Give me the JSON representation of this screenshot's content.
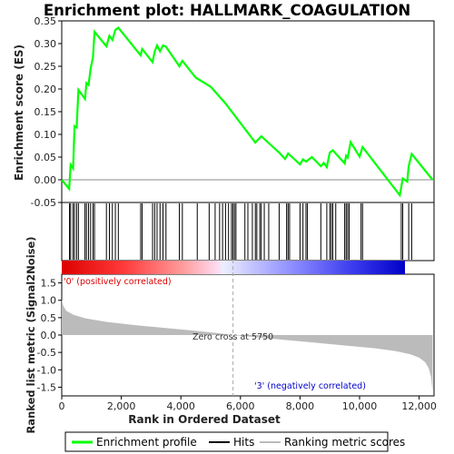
{
  "chart_data": {
    "type": "line",
    "title": "Enrichment plot: HALLMARK_COAGULATION",
    "xlabel": "Rank in Ordered Dataset",
    "ylabel_top": "Enrichment score (ES)",
    "ylabel_bottom": "Ranked list metric (Signal2Noise)",
    "xlim": [
      0,
      12500
    ],
    "x_ticks": [
      0,
      2000,
      4000,
      6000,
      8000,
      10000,
      12000
    ],
    "x_tick_labels": [
      "0",
      "2,000",
      "4,000",
      "6,000",
      "8,000",
      "10,000",
      "12,000"
    ],
    "es_ylim": [
      -0.05,
      0.35
    ],
    "es_ticks": [
      -0.05,
      0.0,
      0.05,
      0.1,
      0.15,
      0.2,
      0.25,
      0.3,
      0.35
    ],
    "es_tick_labels": [
      "-0.05",
      "0.00",
      "0.05",
      "0.10",
      "0.15",
      "0.20",
      "0.25",
      "0.30",
      "0.35"
    ],
    "metric_ylim": [
      -1.75,
      1.75
    ],
    "metric_ticks": [
      -1.5,
      -1.0,
      -0.5,
      0.0,
      0.5,
      1.0,
      1.5
    ],
    "metric_tick_labels": [
      "-1.5",
      "-1.0",
      "-0.5",
      "0.0",
      "0.5",
      "1.0",
      "1.5"
    ],
    "series": [
      {
        "name": "Enrichment profile",
        "color": "#00ff00",
        "x": [
          0,
          250,
          300,
          380,
          430,
          500,
          560,
          780,
          830,
          900,
          970,
          1050,
          1100,
          1500,
          1600,
          1700,
          1800,
          1900,
          2650,
          2700,
          3050,
          3120,
          3200,
          3300,
          3400,
          3500,
          3950,
          4050,
          4500,
          5000,
          5500,
          6000,
          6500,
          6700,
          6800,
          7300,
          7500,
          7600,
          8000,
          8100,
          8200,
          8400,
          8700,
          8800,
          8900,
          9000,
          9100,
          9500,
          9550,
          9600,
          9700,
          10000,
          10100,
          11350,
          11450,
          11600,
          11650,
          11750,
          12450
        ],
        "y": [
          0.0,
          -0.02,
          0.033,
          0.025,
          0.118,
          0.115,
          0.198,
          0.178,
          0.213,
          0.209,
          0.245,
          0.27,
          0.326,
          0.294,
          0.317,
          0.308,
          0.33,
          0.335,
          0.274,
          0.288,
          0.259,
          0.282,
          0.296,
          0.283,
          0.296,
          0.293,
          0.25,
          0.262,
          0.225,
          0.205,
          0.168,
          0.125,
          0.082,
          0.096,
          0.09,
          0.06,
          0.046,
          0.058,
          0.034,
          0.045,
          0.04,
          0.05,
          0.03,
          0.037,
          0.028,
          0.06,
          0.065,
          0.036,
          0.053,
          0.049,
          0.083,
          0.051,
          0.072,
          -0.034,
          0.003,
          -0.004,
          0.03,
          0.057,
          0.0
        ]
      },
      {
        "name": "Hits",
        "color": "#000000",
        "positions": [
          260,
          300,
          380,
          430,
          500,
          560,
          780,
          830,
          900,
          970,
          1050,
          1100,
          1500,
          1600,
          1700,
          1800,
          1900,
          2650,
          2700,
          3050,
          3120,
          3200,
          3300,
          3400,
          3500,
          3950,
          4050,
          4550,
          4950,
          5150,
          5300,
          5400,
          5500,
          5600,
          5700,
          5750,
          5800,
          5850,
          6150,
          6250,
          6400,
          6500,
          6550,
          6650,
          6700,
          6800,
          6950,
          7300,
          7550,
          7600,
          7650,
          8000,
          8100,
          8200,
          8250,
          8700,
          8900,
          9000,
          9050,
          9100,
          9200,
          9500,
          9550,
          9600,
          9650,
          10050,
          10100,
          11400,
          11450,
          11650,
          11750
        ]
      },
      {
        "name": "Ranking metric scores",
        "color": "#bbbbbb",
        "x": [
          0,
          50,
          150,
          400,
          800,
          1500,
          2500,
          3500,
          4500,
          5200,
          5750,
          6500,
          7500,
          8500,
          9500,
          10500,
          11200,
          11700,
          12000,
          12200,
          12320,
          12400,
          12450
        ],
        "y": [
          1.02,
          0.85,
          0.7,
          0.58,
          0.48,
          0.38,
          0.28,
          0.2,
          0.12,
          0.06,
          0.0,
          -0.06,
          -0.14,
          -0.22,
          -0.3,
          -0.38,
          -0.46,
          -0.55,
          -0.65,
          -0.78,
          -0.95,
          -1.2,
          -1.62
        ]
      }
    ],
    "colorbar": {
      "stops": [
        "#dd0000",
        "#ff3a3a",
        "#ff9a9a",
        "#ffd8ee",
        "#eeeeff",
        "#c6c6ff",
        "#8a8aff",
        "#3a3aee",
        "#0000c8"
      ],
      "positions": [
        0,
        0.18,
        0.35,
        0.45,
        0.47,
        0.55,
        0.68,
        0.85,
        1
      ]
    },
    "annotations": {
      "positive": "'0' (positively correlated)",
      "negative": "'3' (negatively correlated)",
      "zero_cross": "Zero cross at 5750",
      "zero_cross_rank": 5750
    },
    "legend": [
      "Enrichment profile",
      "Hits",
      "Ranking metric scores"
    ],
    "legend_position": "bottom",
    "grid": false
  },
  "colors": {
    "positive_text": "#dd0000",
    "negative_text": "#0000cc"
  }
}
